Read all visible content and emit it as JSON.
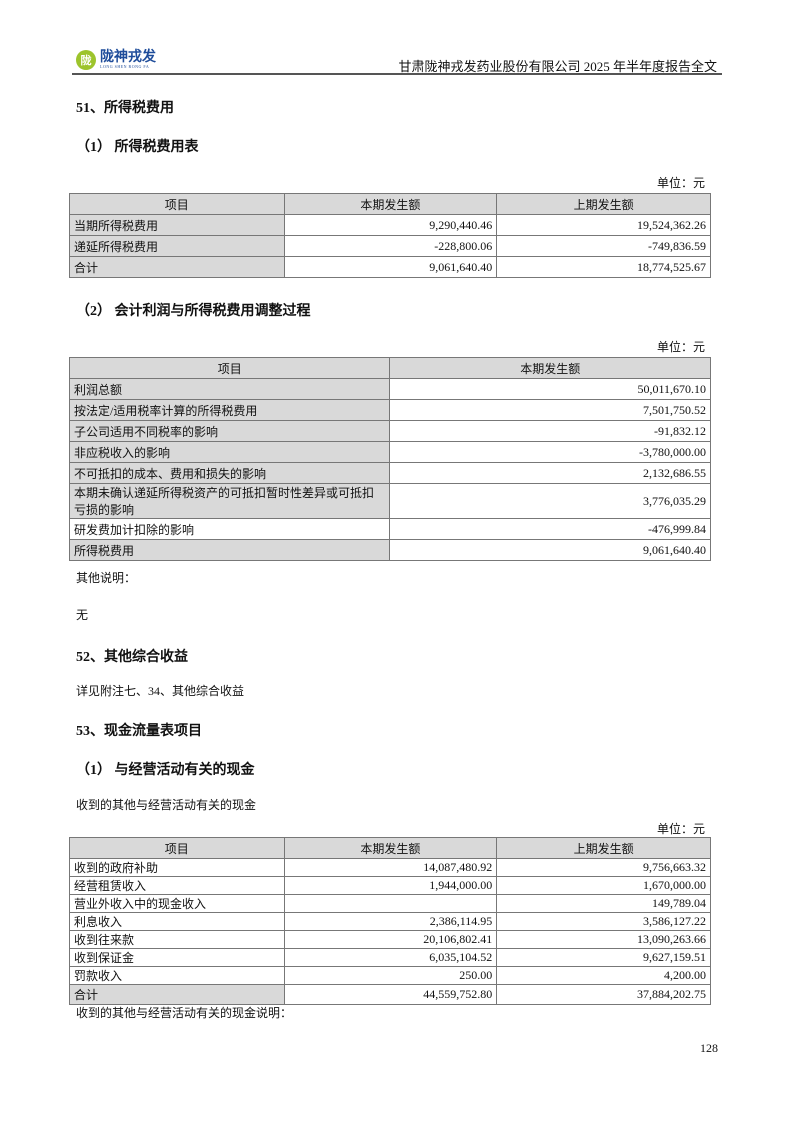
{
  "header": {
    "logo_cn": "陇神戎发",
    "logo_en": "LONG SHEN RONG FA",
    "doc_title": "甘肃陇神戎发药业股份有限公司 2025 年半年度报告全文"
  },
  "s51": {
    "title": "51、所得税费用",
    "sub1": "（1） 所得税费用表",
    "unit": "单位：元",
    "table1": {
      "headers": [
        "项目",
        "本期发生额",
        "上期发生额"
      ],
      "rows": [
        [
          "当期所得税费用",
          "9,290,440.46",
          "19,524,362.26"
        ],
        [
          "递延所得税费用",
          "-228,800.06",
          "-749,836.59"
        ],
        [
          "合计",
          "9,061,640.40",
          "18,774,525.67"
        ]
      ]
    },
    "sub2": "（2） 会计利润与所得税费用调整过程",
    "table2": {
      "headers": [
        "项目",
        "本期发生额"
      ],
      "rows": [
        [
          "利润总额",
          "50,011,670.10"
        ],
        [
          "按法定/适用税率计算的所得税费用",
          "7,501,750.52"
        ],
        [
          "子公司适用不同税率的影响",
          "-91,832.12"
        ],
        [
          "非应税收入的影响",
          "-3,780,000.00"
        ],
        [
          "不可抵扣的成本、费用和损失的影响",
          "2,132,686.55"
        ],
        [
          "本期未确认递延所得税资产的可抵扣暂时性差异或可抵扣亏损的影响",
          "3,776,035.29"
        ],
        [
          "研发费加计扣除的影响",
          "-476,999.84"
        ],
        [
          "所得税费用",
          "9,061,640.40"
        ]
      ]
    },
    "other_label": "其他说明：",
    "other_value": "无"
  },
  "s52": {
    "title": "52、其他综合收益",
    "text": "详见附注七、34、其他综合收益"
  },
  "s53": {
    "title": "53、现金流量表项目",
    "sub1": "（1） 与经营活动有关的现金",
    "caption": "收到的其他与经营活动有关的现金",
    "unit": "单位：元",
    "table3": {
      "headers": [
        "项目",
        "本期发生额",
        "上期发生额"
      ],
      "rows": [
        [
          "收到的政府补助",
          "14,087,480.92",
          "9,756,663.32"
        ],
        [
          "经营租赁收入",
          "1,944,000.00",
          "1,670,000.00"
        ],
        [
          "营业外收入中的现金收入",
          "",
          "149,789.04"
        ],
        [
          "利息收入",
          "2,386,114.95",
          "3,586,127.22"
        ],
        [
          "收到往来款",
          "20,106,802.41",
          "13,090,263.66"
        ],
        [
          "收到保证金",
          "6,035,104.52",
          "9,627,159.51"
        ],
        [
          "罚款收入",
          "250.00",
          "4,200.00"
        ],
        [
          "合计",
          "44,559,752.80",
          "37,884,202.75"
        ]
      ]
    },
    "note": "收到的其他与经营活动有关的现金说明："
  },
  "page_number": "128"
}
